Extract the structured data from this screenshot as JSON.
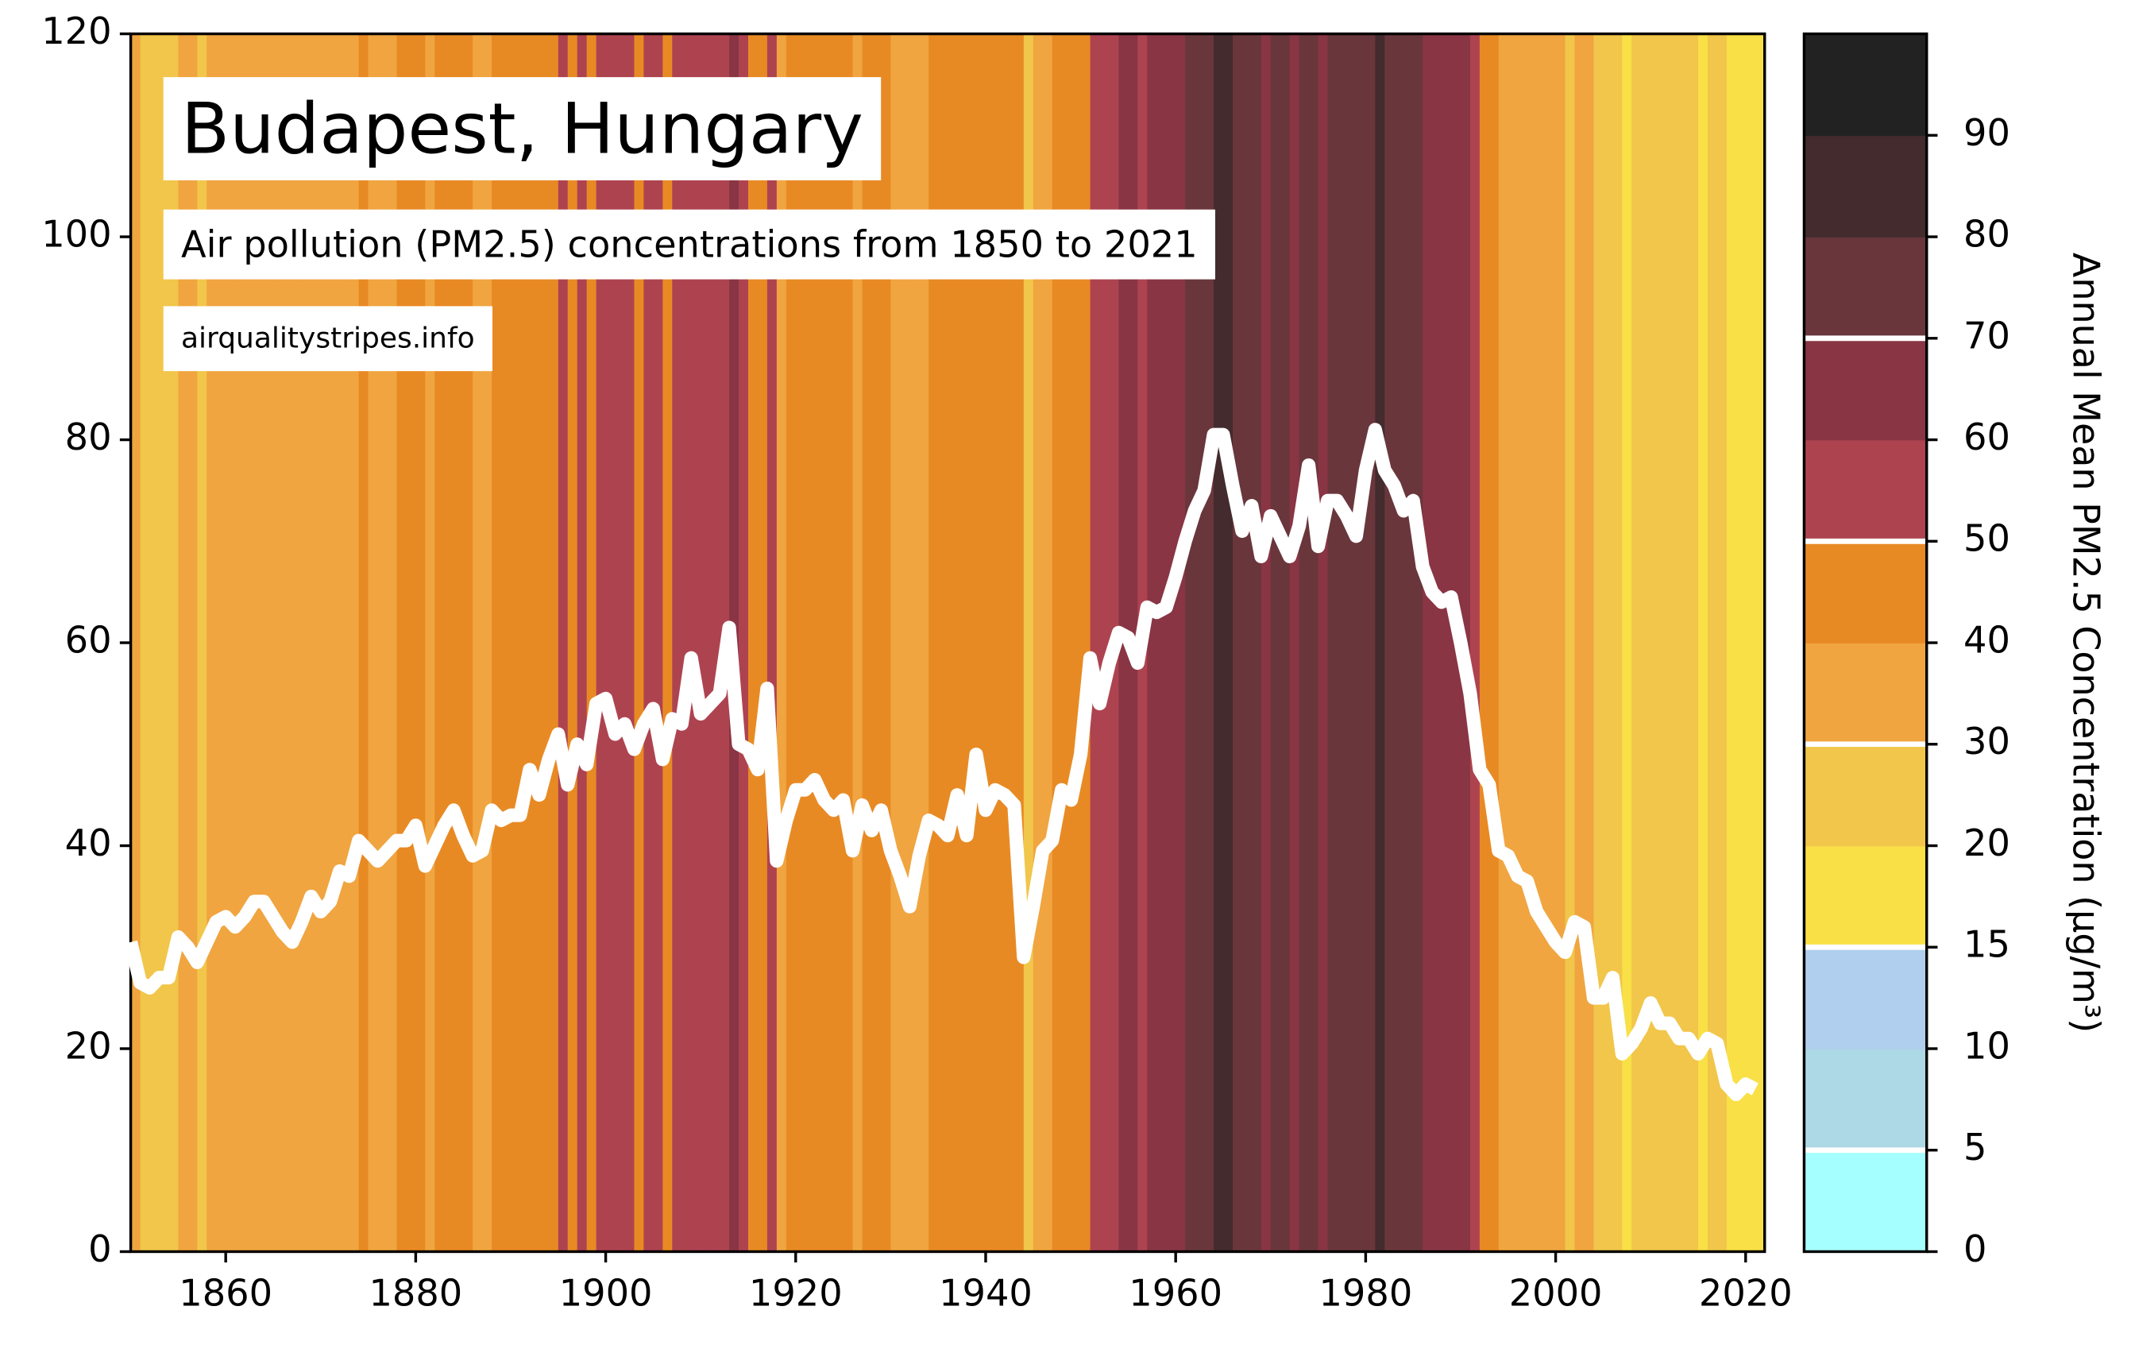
{
  "chart_data": {
    "type": "line",
    "title": "Budapest, Hungary",
    "subtitle": "Air pollution (PM2.5) concentrations from 1850 to 2021",
    "source": "airqualitystripes.info",
    "x": [
      1850,
      1851,
      1852,
      1853,
      1854,
      1855,
      1856,
      1857,
      1858,
      1859,
      1860,
      1861,
      1862,
      1863,
      1864,
      1865,
      1866,
      1867,
      1868,
      1869,
      1870,
      1871,
      1872,
      1873,
      1874,
      1875,
      1876,
      1877,
      1878,
      1879,
      1880,
      1881,
      1882,
      1883,
      1884,
      1885,
      1886,
      1887,
      1888,
      1889,
      1890,
      1891,
      1892,
      1893,
      1894,
      1895,
      1896,
      1897,
      1898,
      1899,
      1900,
      1901,
      1902,
      1903,
      1904,
      1905,
      1906,
      1907,
      1908,
      1909,
      1910,
      1911,
      1912,
      1913,
      1914,
      1915,
      1916,
      1917,
      1918,
      1919,
      1920,
      1921,
      1922,
      1923,
      1924,
      1925,
      1926,
      1927,
      1928,
      1929,
      1930,
      1931,
      1932,
      1933,
      1934,
      1935,
      1936,
      1937,
      1938,
      1939,
      1940,
      1941,
      1942,
      1943,
      1944,
      1945,
      1946,
      1947,
      1948,
      1949,
      1950,
      1951,
      1952,
      1953,
      1954,
      1955,
      1956,
      1957,
      1958,
      1959,
      1960,
      1961,
      1962,
      1963,
      1964,
      1965,
      1966,
      1967,
      1968,
      1969,
      1970,
      1971,
      1972,
      1973,
      1974,
      1975,
      1976,
      1977,
      1978,
      1979,
      1980,
      1981,
      1982,
      1983,
      1984,
      1985,
      1986,
      1987,
      1988,
      1989,
      1990,
      1991,
      1992,
      1993,
      1994,
      1995,
      1996,
      1997,
      1998,
      1999,
      2000,
      2001,
      2002,
      2003,
      2004,
      2005,
      2006,
      2007,
      2008,
      2009,
      2010,
      2011,
      2012,
      2013,
      2014,
      2015,
      2016,
      2017,
      2018,
      2019,
      2020,
      2021
    ],
    "values": [
      30.5,
      26.5,
      26,
      27,
      27,
      31,
      30,
      28.5,
      30.5,
      32.5,
      33,
      32,
      33,
      34.5,
      34.5,
      33,
      31.5,
      30.5,
      32.5,
      35,
      33.5,
      34.5,
      37.5,
      37,
      40.5,
      39.5,
      38.5,
      39.5,
      40.5,
      40.5,
      42,
      38,
      40,
      42,
      43.5,
      41,
      39,
      39.5,
      43.5,
      42.5,
      43,
      43,
      47.5,
      45,
      48.5,
      51,
      46,
      50,
      48,
      54,
      54.5,
      51,
      52,
      49.5,
      52,
      53.5,
      48.5,
      52.5,
      52,
      58.5,
      53,
      54,
      55,
      61.5,
      50,
      49.5,
      47.5,
      55.5,
      38.5,
      42.5,
      45.5,
      45.5,
      46.5,
      44.5,
      43.5,
      44.5,
      39.5,
      44,
      41.5,
      43.5,
      39.5,
      37,
      34,
      39,
      42.5,
      42,
      41,
      45,
      41,
      49,
      43.5,
      45.5,
      45,
      44,
      29,
      34,
      39.5,
      40.5,
      45.5,
      44.5,
      49,
      58.5,
      54,
      58,
      61,
      60.5,
      58,
      63.5,
      63,
      63.5,
      66.5,
      70,
      73,
      75,
      80.5,
      80.5,
      75.5,
      71,
      73.5,
      68.5,
      72.5,
      70.5,
      68.5,
      71.5,
      77.5,
      69.5,
      74,
      74,
      72.5,
      70.5,
      77,
      81,
      77,
      75.5,
      73,
      74,
      67.5,
      65,
      64,
      64.5,
      60,
      55,
      47.5,
      46,
      39.5,
      39,
      37,
      36.5,
      33.5,
      32,
      30.5,
      29.5,
      32.5,
      32,
      25,
      25,
      27,
      19.5,
      20.5,
      22,
      24.5,
      22.5,
      22.5,
      21,
      21,
      19.5,
      21,
      20.5,
      16.5,
      15.5,
      16.5,
      16
    ],
    "color": "#ffffff",
    "xlim": [
      1850,
      2022
    ],
    "xticks": [
      1860,
      1880,
      1900,
      1920,
      1940,
      1960,
      1980,
      2000,
      2020
    ],
    "ylim": [
      0,
      120
    ],
    "yticks": [
      0,
      20,
      40,
      60,
      80,
      100,
      120
    ],
    "colorbar": {
      "label": "Annual Mean PM2.5 Concentration (μg/m³)",
      "ticks": [
        0,
        5,
        10,
        15,
        20,
        30,
        40,
        50,
        60,
        70,
        80,
        90
      ],
      "colors": [
        "#a6ffff",
        "#add8e6",
        "#b0cfee",
        "#f8e046",
        "#f1c64a",
        "#f0a540",
        "#e88a24",
        "#ae4350",
        "#893544",
        "#69363c",
        "#432b2e",
        "#222222"
      ],
      "guidelines": [
        5,
        15,
        30,
        50,
        70
      ]
    }
  }
}
